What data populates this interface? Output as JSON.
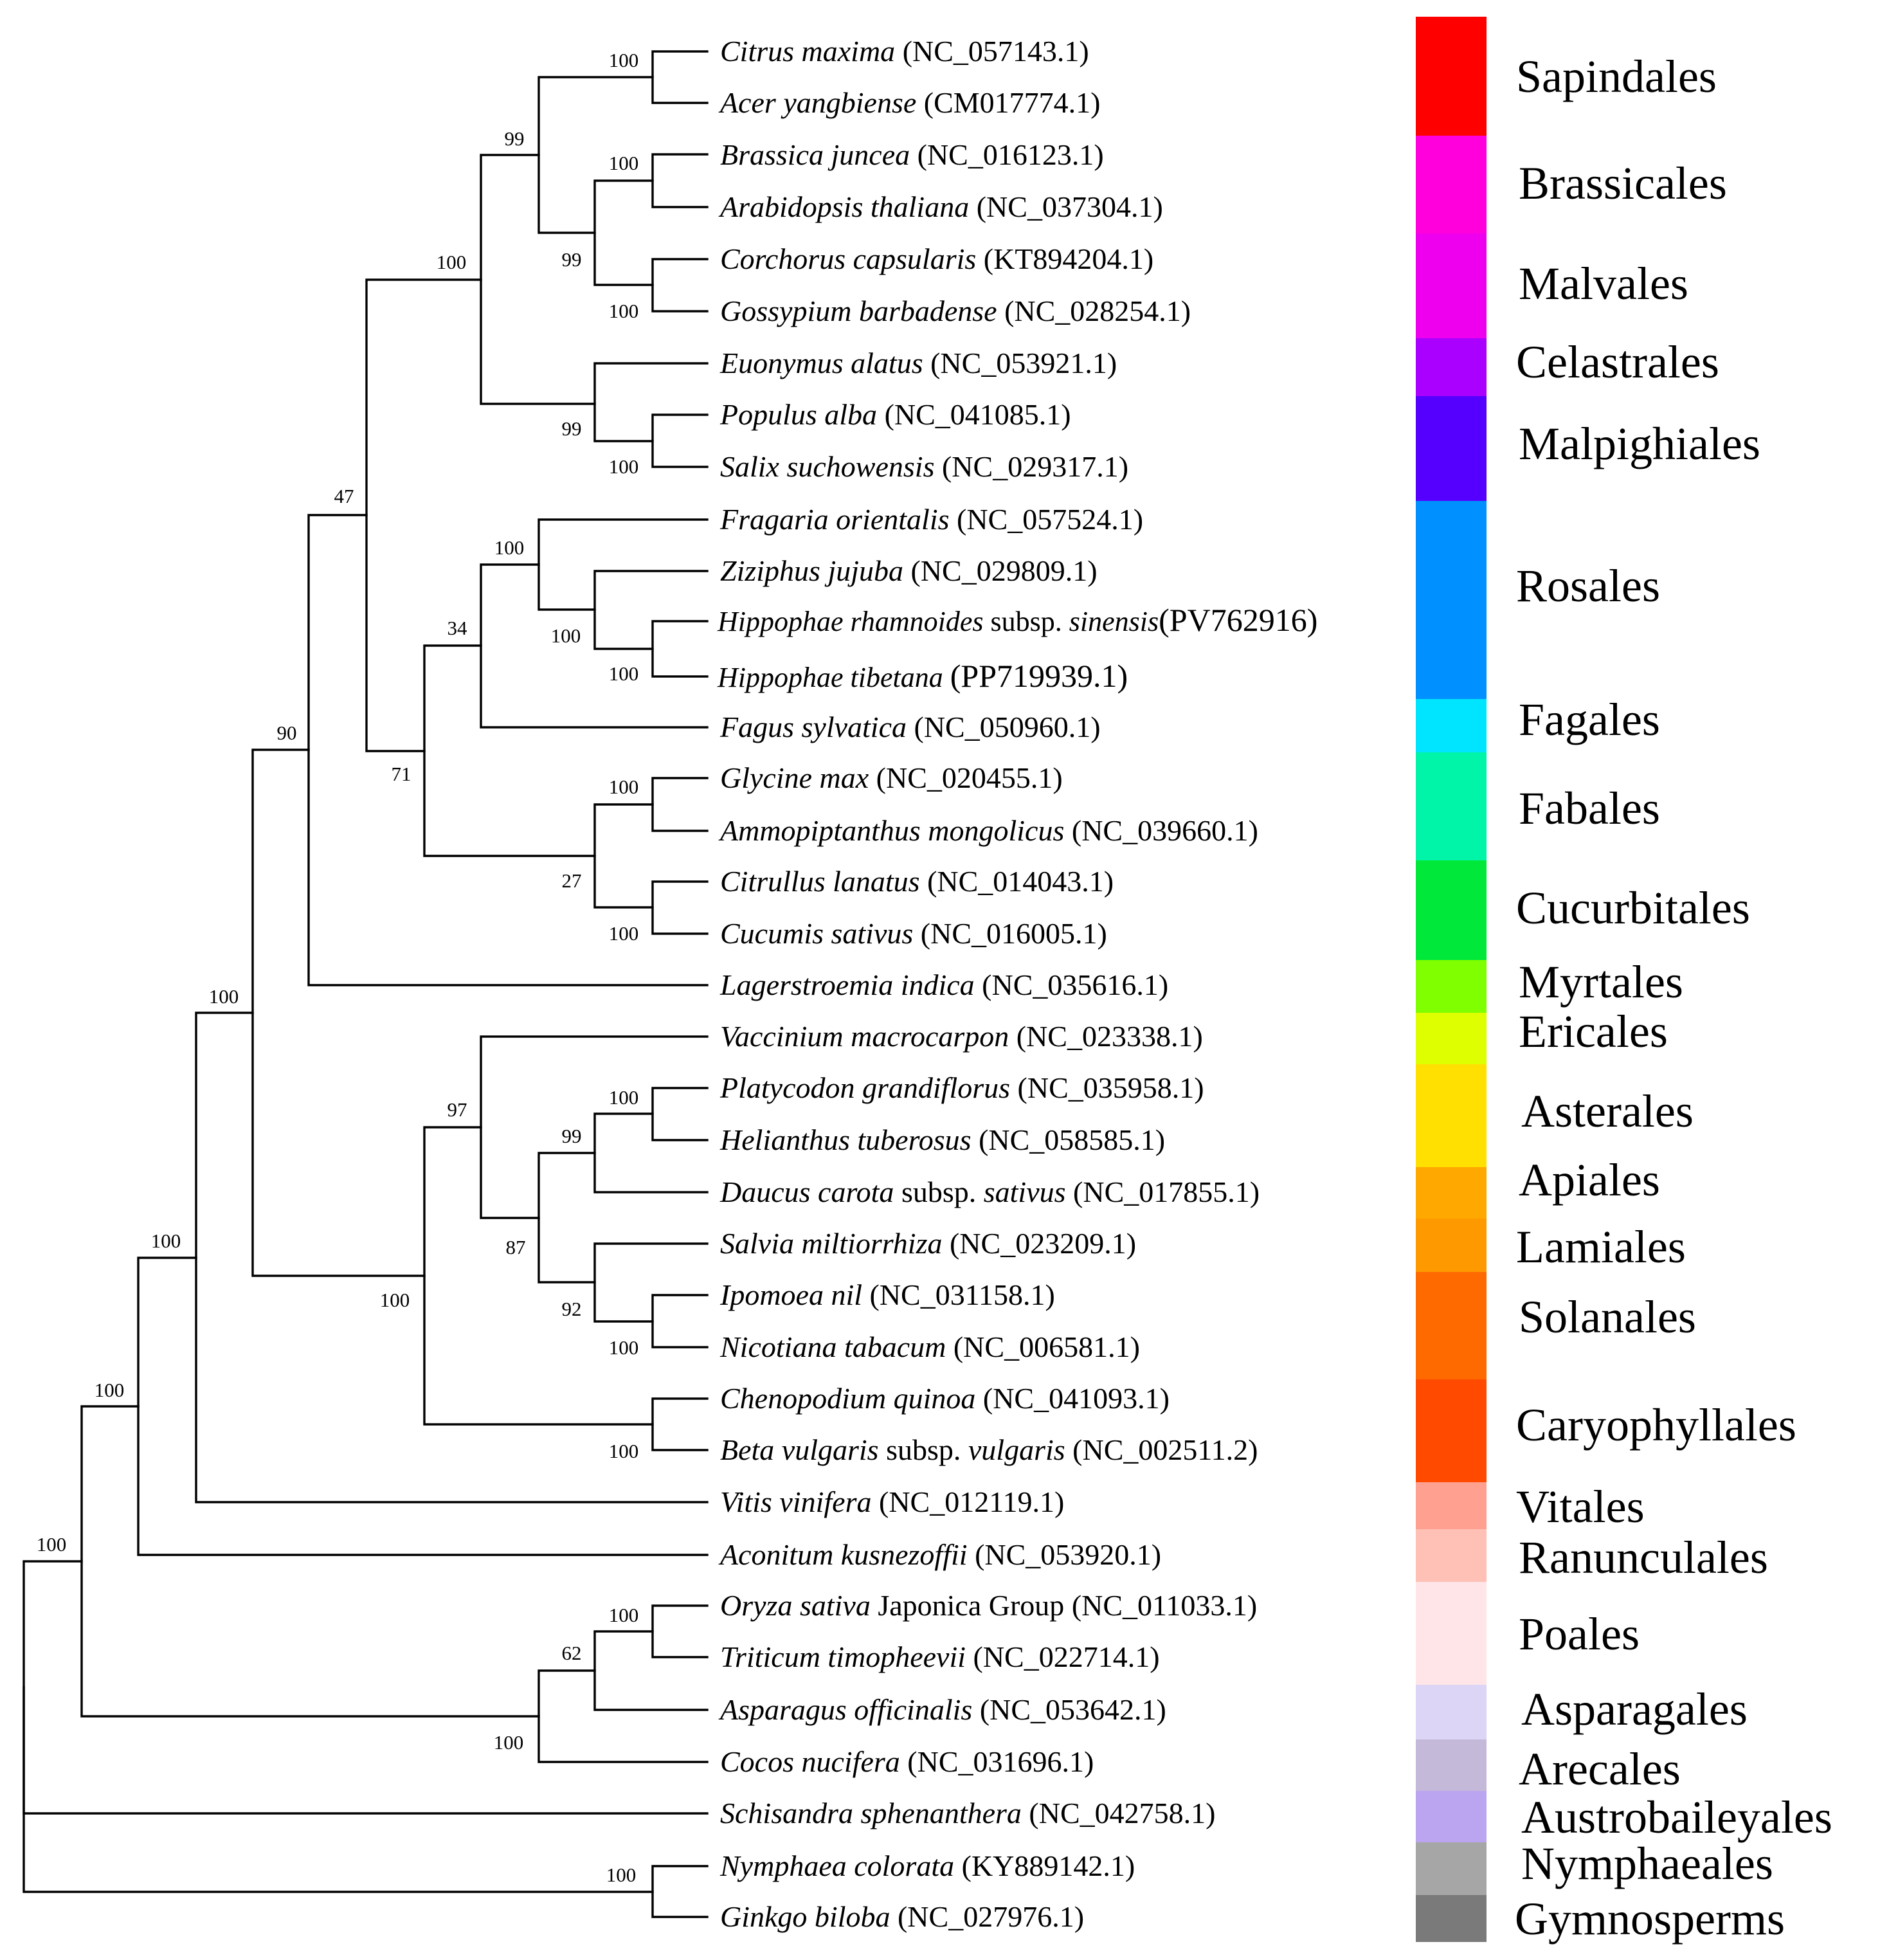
{
  "taxa": [
    {
      "genus": "Citrus maxima",
      "rank": "",
      "infra": "",
      "acc": "(NC_057143.1)"
    },
    {
      "genus": "Acer yangbiense",
      "rank": "",
      "infra": "",
      "acc": "(CM017774.1)"
    },
    {
      "genus": "Brassica juncea",
      "rank": "",
      "infra": "",
      "acc": "(NC_016123.1)"
    },
    {
      "genus": "Arabidopsis thaliana",
      "rank": "",
      "infra": "",
      "acc": "(NC_037304.1)"
    },
    {
      "genus": "Corchorus capsularis",
      "rank": "",
      "infra": "",
      "acc": "(KT894204.1)"
    },
    {
      "genus": "Gossypium barbadense",
      "rank": "",
      "infra": "",
      "acc": "(NC_028254.1)"
    },
    {
      "genus": "Euonymus alatus",
      "rank": "",
      "infra": "",
      "acc": "(NC_053921.1)"
    },
    {
      "genus": "Populus alba",
      "rank": "",
      "infra": "",
      "acc": "(NC_041085.1)"
    },
    {
      "genus": "Salix suchowensis",
      "rank": "",
      "infra": "",
      "acc": "(NC_029317.1)"
    },
    {
      "genus": "Fragaria orientalis",
      "rank": "",
      "infra": "",
      "acc": "(NC_057524.1)"
    },
    {
      "genus": "Ziziphus jujuba",
      "rank": "",
      "infra": "",
      "acc": "(NC_029809.1)"
    },
    {
      "genus": "Hippophae rhamnoides",
      "rank": "subsp.",
      "infra": "sinensis",
      "acc": "(PV762916)"
    },
    {
      "genus": "Hippophae tibetana",
      "rank": "",
      "infra": "",
      "acc": "(PP719939.1)"
    },
    {
      "genus": "Fagus sylvatica",
      "rank": "",
      "infra": "",
      "acc": "(NC_050960.1)"
    },
    {
      "genus": "Glycine max",
      "rank": "",
      "infra": "",
      "acc": "(NC_020455.1)"
    },
    {
      "genus": "Ammopiptanthus mongolicus",
      "rank": "",
      "infra": "",
      "acc": "(NC_039660.1)"
    },
    {
      "genus": "Citrullus lanatus",
      "rank": "",
      "infra": "",
      "acc": "(NC_014043.1)"
    },
    {
      "genus": "Cucumis sativus",
      "rank": "",
      "infra": "",
      "acc": "(NC_016005.1)"
    },
    {
      "genus": "Lagerstroemia indica",
      "rank": "",
      "infra": "",
      "acc": "(NC_035616.1)"
    },
    {
      "genus": "Vaccinium macrocarpon",
      "rank": "",
      "infra": "",
      "acc": "(NC_023338.1)"
    },
    {
      "genus": "Platycodon grandiflorus",
      "rank": "",
      "infra": "",
      "acc": "(NC_035958.1)"
    },
    {
      "genus": "Helianthus tuberosus",
      "rank": "",
      "infra": "",
      "acc": "(NC_058585.1)"
    },
    {
      "genus": "Daucus carota",
      "rank": "subsp.",
      "infra": "sativus",
      "acc": "(NC_017855.1)"
    },
    {
      "genus": "Salvia miltiorrhiza",
      "rank": "",
      "infra": "",
      "acc": "(NC_023209.1)"
    },
    {
      "genus": "Ipomoea nil",
      "rank": "",
      "infra": "",
      "acc": "(NC_031158.1)"
    },
    {
      "genus": "Nicotiana tabacum",
      "rank": "",
      "infra": "",
      "acc": "(NC_006581.1)"
    },
    {
      "genus": "Chenopodium quinoa",
      "rank": "",
      "infra": "",
      "acc": "(NC_041093.1)"
    },
    {
      "genus": "Beta vulgaris",
      "rank": "subsp.",
      "infra": "vulgaris",
      "acc": "(NC_002511.2)"
    },
    {
      "genus": "Vitis vinifera",
      "rank": "",
      "infra": "",
      "acc": "(NC_012119.1)"
    },
    {
      "genus": "Aconitum kusnezoffii",
      "rank": "",
      "infra": "",
      "acc": "(NC_053920.1)"
    },
    {
      "genus": "Oryza sativa",
      "rank": "Japonica Group",
      "infra": "",
      "acc": "(NC_011033.1)"
    },
    {
      "genus": "Triticum timopheevii",
      "rank": "",
      "infra": "",
      "acc": "(NC_022714.1)"
    },
    {
      "genus": "Asparagus officinalis",
      "rank": "",
      "infra": "",
      "acc": "(NC_053642.1)"
    },
    {
      "genus": "Cocos nucifera",
      "rank": "",
      "infra": "",
      "acc": "(NC_031696.1)"
    },
    {
      "genus": "Schisandra sphenanthera",
      "rank": "",
      "infra": "",
      "acc": "(NC_042758.1)"
    },
    {
      "genus": "Nymphaea colorata",
      "rank": "",
      "infra": "",
      "acc": "(KY889142.1)"
    },
    {
      "genus": "Ginkgo biloba",
      "rank": "",
      "infra": "",
      "acc": "(NC_027976.1)"
    }
  ],
  "bootstrap": {
    "citrus_acer": "100",
    "sapindales_malvids": "99",
    "brassica_arabidopsis": "100",
    "brassicales_malvales": "99",
    "corchorus_gossypium": "100",
    "malvids_celastrales": "100",
    "celastrales_malpighiales": "99",
    "populus_salix": "100",
    "rosids_core": "47",
    "rosales_outer": "100",
    "ziziphus_hippophae": "100",
    "hippophae_pair": "100",
    "rosales_fagales": "34",
    "nfc_rest": "71",
    "glycine_ammopiptanthus": "100",
    "fabales_cucurbitales": "27",
    "citrullus_cucumis": "100",
    "rosids_asterids": "90",
    "core_eudicots": "100",
    "asterids": "97",
    "platycodon_helianthus": "100",
    "campanulids": "99",
    "lamiids_campanulids": "87",
    "lamiids": "92",
    "ipomoea_nicotiana": "100",
    "superasterids": "100",
    "caryophyllales": "100",
    "eudicots": "100",
    "mesangiosperms": "100",
    "oryza_triticum": "100",
    "monocots_inner": "62",
    "monocots": "100",
    "angiosperms": "100",
    "nymphaea_ginkgo": "100"
  },
  "orders": [
    {
      "label": "Sapindales",
      "color": "#FF0000"
    },
    {
      "label": "Brassicales",
      "color": "#FF00DD"
    },
    {
      "label": "Malvales",
      "color": "#EE00EE"
    },
    {
      "label": "Celastrales",
      "color": "#AA00FF"
    },
    {
      "label": "Malpighiales",
      "color": "#5500FF"
    },
    {
      "label": "Rosales",
      "color": "#0090FF"
    },
    {
      "label": "Fagales",
      "color": "#00E5FF"
    },
    {
      "label": "Fabales",
      "color": "#00F5A8"
    },
    {
      "label": "Cucurbitales",
      "color": "#00E83A"
    },
    {
      "label": "Myrtales",
      "color": "#80FF00"
    },
    {
      "label": "Ericales",
      "color": "#DDFF00"
    },
    {
      "label": "Asterales",
      "color": "#FFE000"
    },
    {
      "label": "Apiales",
      "color": "#FFA800"
    },
    {
      "label": "Lamiales",
      "color": "#FF9900"
    },
    {
      "label": "Solanales",
      "color": "#FF6A00"
    },
    {
      "label": "Caryophyllales",
      "color": "#FF4A00"
    },
    {
      "label": "Vitales",
      "color": "#FFA090"
    },
    {
      "label": "Ranunculales",
      "color": "#FFC0B5"
    },
    {
      "label": "Poales",
      "color": "#FFE5E8"
    },
    {
      "label": "Asparagales",
      "color": "#DDD5F5"
    },
    {
      "label": "Arecales",
      "color": "#C5B9DA"
    },
    {
      "label": "Austrobaileyales",
      "color": "#BCA5F0"
    },
    {
      "label": "Nymphaeales",
      "color": "#A6A6A6"
    },
    {
      "label": "Gymnosperms",
      "color": "#7A7A7A"
    }
  ]
}
